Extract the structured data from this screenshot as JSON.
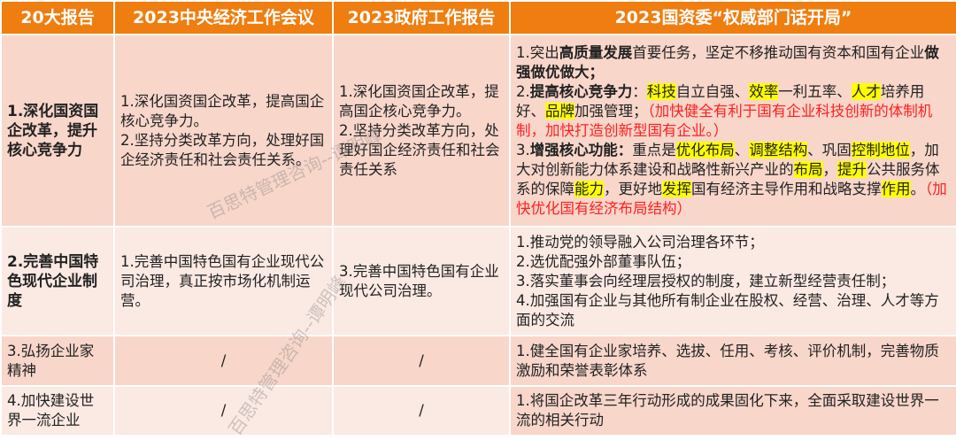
{
  "colors": {
    "header": "#ef7d0f",
    "row_dark": "#f8d6ca",
    "row_light": "#fbe9e3",
    "highlight": "#ffff00",
    "red_note": "#ff2020"
  },
  "header": [
    "20大报告",
    "2023中央经济工作会议",
    "2023政府工作报告",
    "2023国资委“权威部门话开局”"
  ],
  "rows": [
    {
      "topic": "1.深化国资国企改革，提升核心竞争力",
      "cewc": [
        "1.深化国资国企改革，提高国企核心竞争力。",
        "2.坚持分类改革方向，处理好国企经济责任和社会责任关系。"
      ],
      "gov": [
        "1.深化国资国企改革，提高国企核心竞争力。",
        "2.坚持分类改革方向，处理好国企经济责任和社会责任关系"
      ],
      "sasac_segments": [
        {
          "t": "1.突出",
          "s": "n"
        },
        {
          "t": "高质量发展",
          "s": "b"
        },
        {
          "t": "首要任务，坚定不移推动国有资本和国有企业",
          "s": "n"
        },
        {
          "t": "做强做优做大；",
          "s": "b"
        },
        {
          "br": true
        },
        {
          "t": "2.",
          "s": "n"
        },
        {
          "t": "提高核心竞争力",
          "s": "b"
        },
        {
          "t": "：",
          "s": "n"
        },
        {
          "t": "科技",
          "s": "h"
        },
        {
          "t": "自立自强、",
          "s": "n"
        },
        {
          "t": "效率",
          "s": "h"
        },
        {
          "t": "一利五率、",
          "s": "n"
        },
        {
          "t": "人才",
          "s": "h"
        },
        {
          "t": "培养用好、",
          "s": "n"
        },
        {
          "t": "品牌",
          "s": "h"
        },
        {
          "t": "加强管理；",
          "s": "n"
        },
        {
          "t": "（加快健全有利于国有企业科技创新的体制机制，加快打造创新型国有企业。）",
          "s": "r"
        },
        {
          "br": true
        },
        {
          "t": "3.",
          "s": "n"
        },
        {
          "t": "增强核心功能：",
          "s": "b"
        },
        {
          "t": "重点是",
          "s": "n"
        },
        {
          "t": "优化布局",
          "s": "h"
        },
        {
          "t": "、",
          "s": "n"
        },
        {
          "t": "调整结构",
          "s": "h"
        },
        {
          "t": "、巩固",
          "s": "n"
        },
        {
          "t": "控制地位",
          "s": "h"
        },
        {
          "t": "，加大对创新能力体系建设和战略性新兴产业的",
          "s": "n"
        },
        {
          "t": "布局",
          "s": "h"
        },
        {
          "t": "，",
          "s": "n"
        },
        {
          "t": "提升",
          "s": "h"
        },
        {
          "t": "公共服务体系的保障",
          "s": "n"
        },
        {
          "t": "能力",
          "s": "h"
        },
        {
          "t": "，更好地",
          "s": "n"
        },
        {
          "t": "发挥",
          "s": "h"
        },
        {
          "t": "国有经济主导作用和战略支撑",
          "s": "n"
        },
        {
          "t": "作用",
          "s": "h"
        },
        {
          "t": "。",
          "s": "n"
        },
        {
          "t": "（加快优化国有经济布局结构）",
          "s": "r"
        }
      ]
    },
    {
      "topic": "2.完善中国特色现代企业制度",
      "cewc": [
        "1.完善中国特色国有企业现代公司治理，真正按市场化机制运营。"
      ],
      "gov": [
        "3.完善中国特色国有企业现代公司治理。"
      ],
      "sasac": [
        "1.推动党的领导融入公司治理各环节；",
        "2.选优配强外部董事队伍；",
        "3.落实董事会向经理层授权的制度，建立新型经营责任制；",
        "4.加强国有企业与其他所有制企业在股权、经营、治理、人才等方面的交流"
      ]
    },
    {
      "topic": "3.弘扬企业家精神",
      "cewc": "/",
      "gov": "/",
      "sasac": [
        "1.健全国有企业家培养、选拔、任用、考核、评价机制，完善物质激励和荣誉表彰体系"
      ]
    },
    {
      "topic": "4.加快建设世界一流企业",
      "cewc": "/",
      "gov": "/",
      "sasac": [
        "1.将国企改革三年行动形成的成果固化下来，全面采取建设世界一流的相关行动"
      ]
    }
  ],
  "watermark": "百思特管理咨询--谭明峰"
}
